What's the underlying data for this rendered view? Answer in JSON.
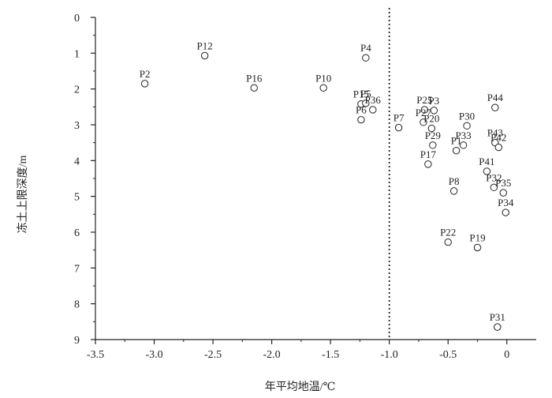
{
  "chart_data": {
    "type": "scatter",
    "title": "",
    "xlabel": "年平均地温/℃",
    "ylabel": "冻土上限深度/m",
    "xlim": [
      -3.5,
      0.25
    ],
    "ylim": [
      0,
      9
    ],
    "y_inverted": true,
    "xticks": [
      "-3.5",
      "-3.0",
      "-2.5",
      "-2.0",
      "-1.5",
      "-1.0",
      "-0.5",
      "0"
    ],
    "yticks": [
      "0",
      "1",
      "2",
      "3",
      "4",
      "5",
      "6",
      "7",
      "8",
      "9"
    ],
    "reference_line": {
      "x": -1.0,
      "style": "dotted"
    },
    "marker": "open-circle",
    "grid": false,
    "points": [
      {
        "label": "P2",
        "x": -3.08,
        "y": 1.85
      },
      {
        "label": "P12",
        "x": -2.57,
        "y": 1.07
      },
      {
        "label": "P16",
        "x": -2.15,
        "y": 1.97
      },
      {
        "label": "P10",
        "x": -1.56,
        "y": 1.97
      },
      {
        "label": "P4",
        "x": -1.2,
        "y": 1.13
      },
      {
        "label": "P15",
        "x": -1.24,
        "y": 2.42
      },
      {
        "label": "P5",
        "x": -1.2,
        "y": 2.4
      },
      {
        "label": "P36",
        "x": -1.14,
        "y": 2.58
      },
      {
        "label": "P6",
        "x": -1.24,
        "y": 2.86
      },
      {
        "label": "P7",
        "x": -0.92,
        "y": 3.08
      },
      {
        "label": "P25",
        "x": -0.7,
        "y": 2.58
      },
      {
        "label": "P3",
        "x": -0.62,
        "y": 2.6
      },
      {
        "label": "P27",
        "x": -0.71,
        "y": 2.93
      },
      {
        "label": "P20",
        "x": -0.64,
        "y": 3.1
      },
      {
        "label": "P44",
        "x": -0.1,
        "y": 2.52
      },
      {
        "label": "P30",
        "x": -0.34,
        "y": 3.03
      },
      {
        "label": "P29",
        "x": -0.63,
        "y": 3.57
      },
      {
        "label": "P1",
        "x": -0.43,
        "y": 3.72
      },
      {
        "label": "P33",
        "x": -0.37,
        "y": 3.57
      },
      {
        "label": "P43",
        "x": -0.1,
        "y": 3.5
      },
      {
        "label": "P42",
        "x": -0.07,
        "y": 3.63
      },
      {
        "label": "P17",
        "x": -0.67,
        "y": 4.1
      },
      {
        "label": "P41",
        "x": -0.17,
        "y": 4.3
      },
      {
        "label": "P8",
        "x": -0.45,
        "y": 4.85
      },
      {
        "label": "P32",
        "x": -0.11,
        "y": 4.75
      },
      {
        "label": "P35",
        "x": -0.03,
        "y": 4.9
      },
      {
        "label": "P34",
        "x": -0.01,
        "y": 5.45
      },
      {
        "label": "P22",
        "x": -0.5,
        "y": 6.28
      },
      {
        "label": "P19",
        "x": -0.25,
        "y": 6.43
      },
      {
        "label": "P31",
        "x": -0.08,
        "y": 8.65
      }
    ]
  }
}
